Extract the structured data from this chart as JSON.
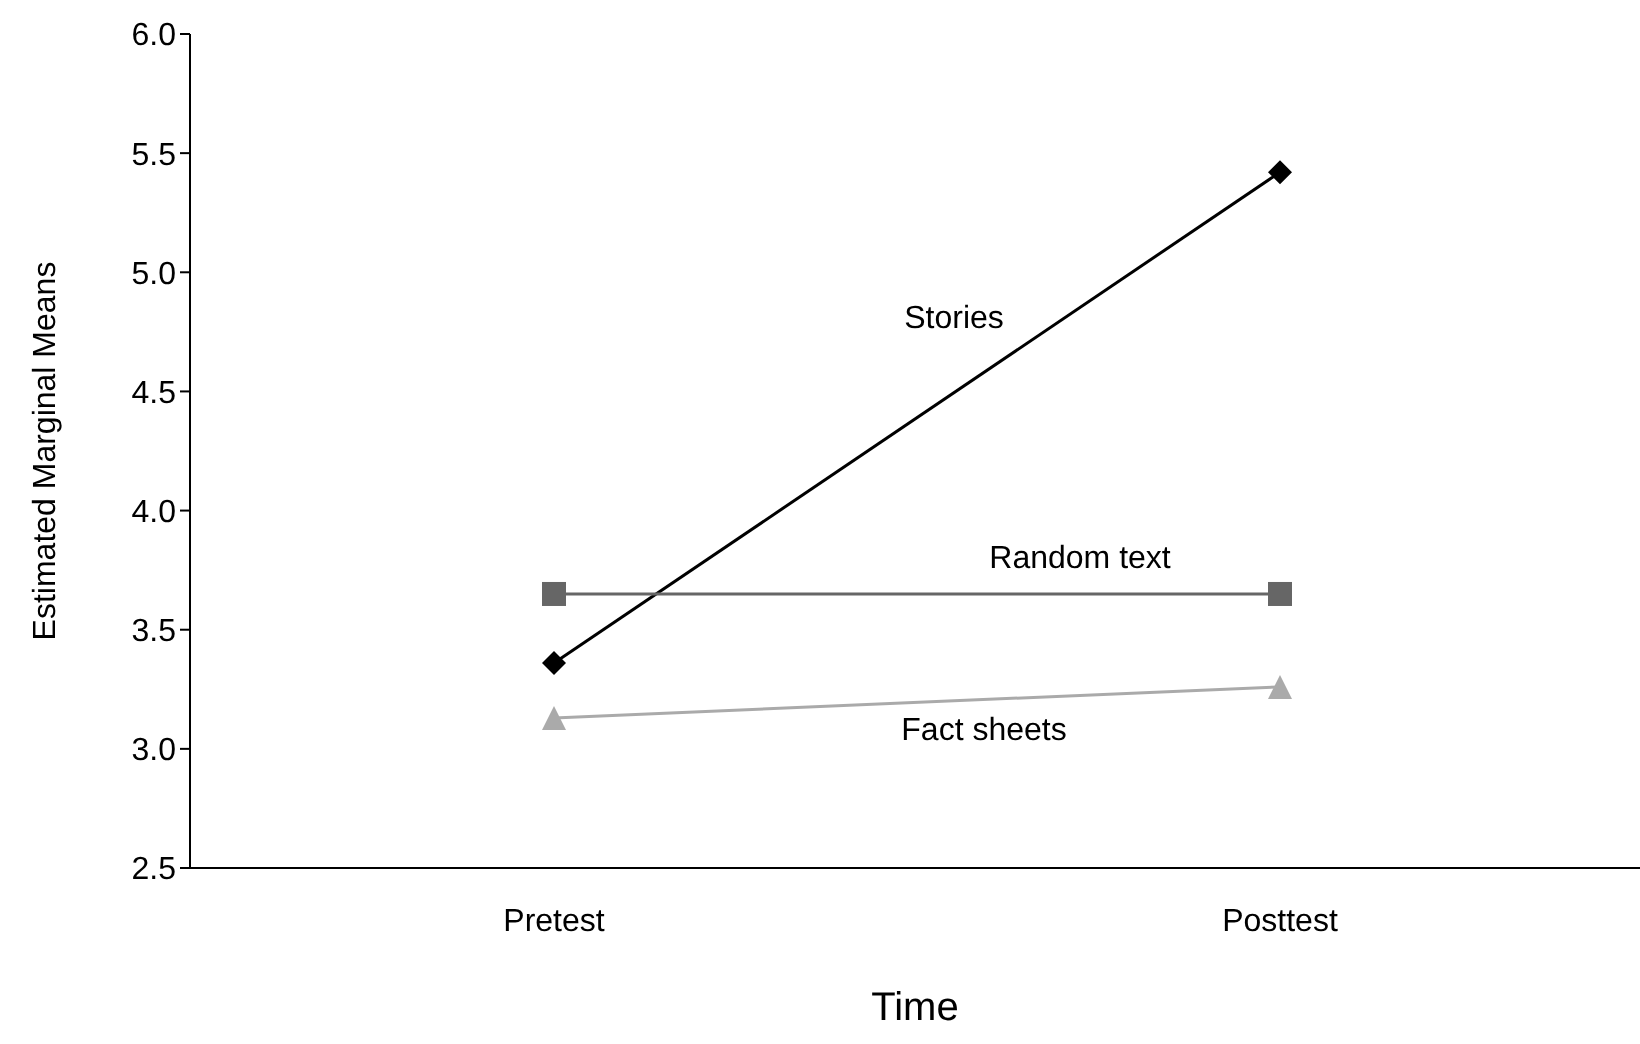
{
  "chart_data": {
    "type": "line",
    "xlabel": "Time",
    "ylabel": "Estimated Marginal Means",
    "categories": [
      "Pretest",
      "Posttest"
    ],
    "series": [
      {
        "name": "Stories",
        "color": "#000000",
        "marker": "diamond",
        "values": [
          3.36,
          5.42
        ]
      },
      {
        "name": "Random text",
        "color": "#666666",
        "marker": "square",
        "values": [
          3.65,
          3.65
        ]
      },
      {
        "name": "Fact sheets",
        "color": "#aaaaaa",
        "marker": "triangle",
        "values": [
          3.13,
          3.26
        ]
      }
    ],
    "ylim": [
      2.5,
      6.0
    ],
    "yticks": [
      {
        "value": 2.5,
        "label": "2.5"
      },
      {
        "value": 3,
        "label": "3.0"
      },
      {
        "value": 3.5,
        "label": "3.5"
      },
      {
        "value": 4,
        "label": "4.0"
      },
      {
        "value": 4.5,
        "label": "4.5"
      },
      {
        "value": 5,
        "label": "5.0"
      },
      {
        "value": 5.5,
        "label": "5.5"
      },
      {
        "value": 6,
        "label": "6.0"
      }
    ],
    "grid": false,
    "legend": false
  }
}
